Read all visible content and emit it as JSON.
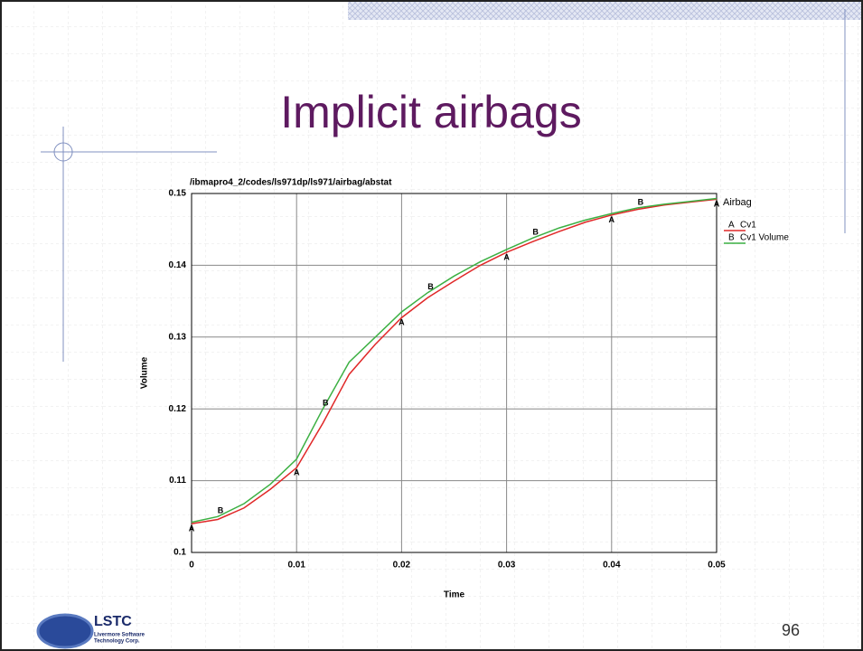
{
  "slide": {
    "title": "Implicit airbags",
    "page_number": "96",
    "logo": [
      "LSTC",
      "Livermore Software",
      "Technology Corp."
    ]
  },
  "chart_data": {
    "type": "line",
    "title": "/ibmapro4_2/codes/ls971dp/ls971/airbag/abstat",
    "legend_title": "Airbag",
    "x_label": "Time",
    "y_label": "Volume",
    "x": [
      0,
      0.0025,
      0.005,
      0.0075,
      0.01,
      0.0125,
      0.015,
      0.0175,
      0.02,
      0.0225,
      0.025,
      0.0275,
      0.03,
      0.0325,
      0.035,
      0.0375,
      0.04,
      0.0425,
      0.045,
      0.0475,
      0.05
    ],
    "series": [
      {
        "name": "Cv1",
        "marker": "A",
        "color": "#e02828",
        "values": [
          0.104,
          0.1046,
          0.1062,
          0.1088,
          0.1118,
          0.118,
          0.1248,
          0.129,
          0.1327,
          0.1355,
          0.1378,
          0.14,
          0.1418,
          0.1433,
          0.1447,
          0.146,
          0.147,
          0.1478,
          0.1484,
          0.1488,
          0.1492
        ]
      },
      {
        "name": "Cv1 Volume",
        "marker": "B",
        "color": "#3cb043",
        "values": [
          0.1042,
          0.105,
          0.1068,
          0.1095,
          0.113,
          0.12,
          0.1265,
          0.13,
          0.1335,
          0.1362,
          0.1385,
          0.1405,
          0.1422,
          0.1438,
          0.1452,
          0.1463,
          0.1472,
          0.148,
          0.1485,
          0.1489,
          0.1493
        ]
      }
    ],
    "xlim": [
      0,
      0.05
    ],
    "xticks": [
      0,
      0.01,
      0.02,
      0.03,
      0.04,
      0.05
    ],
    "ylim": [
      0.1,
      0.15
    ],
    "yticks": [
      0.1,
      0.11,
      0.12,
      0.13,
      0.14,
      0.15
    ],
    "grid": true,
    "legend": "right"
  }
}
